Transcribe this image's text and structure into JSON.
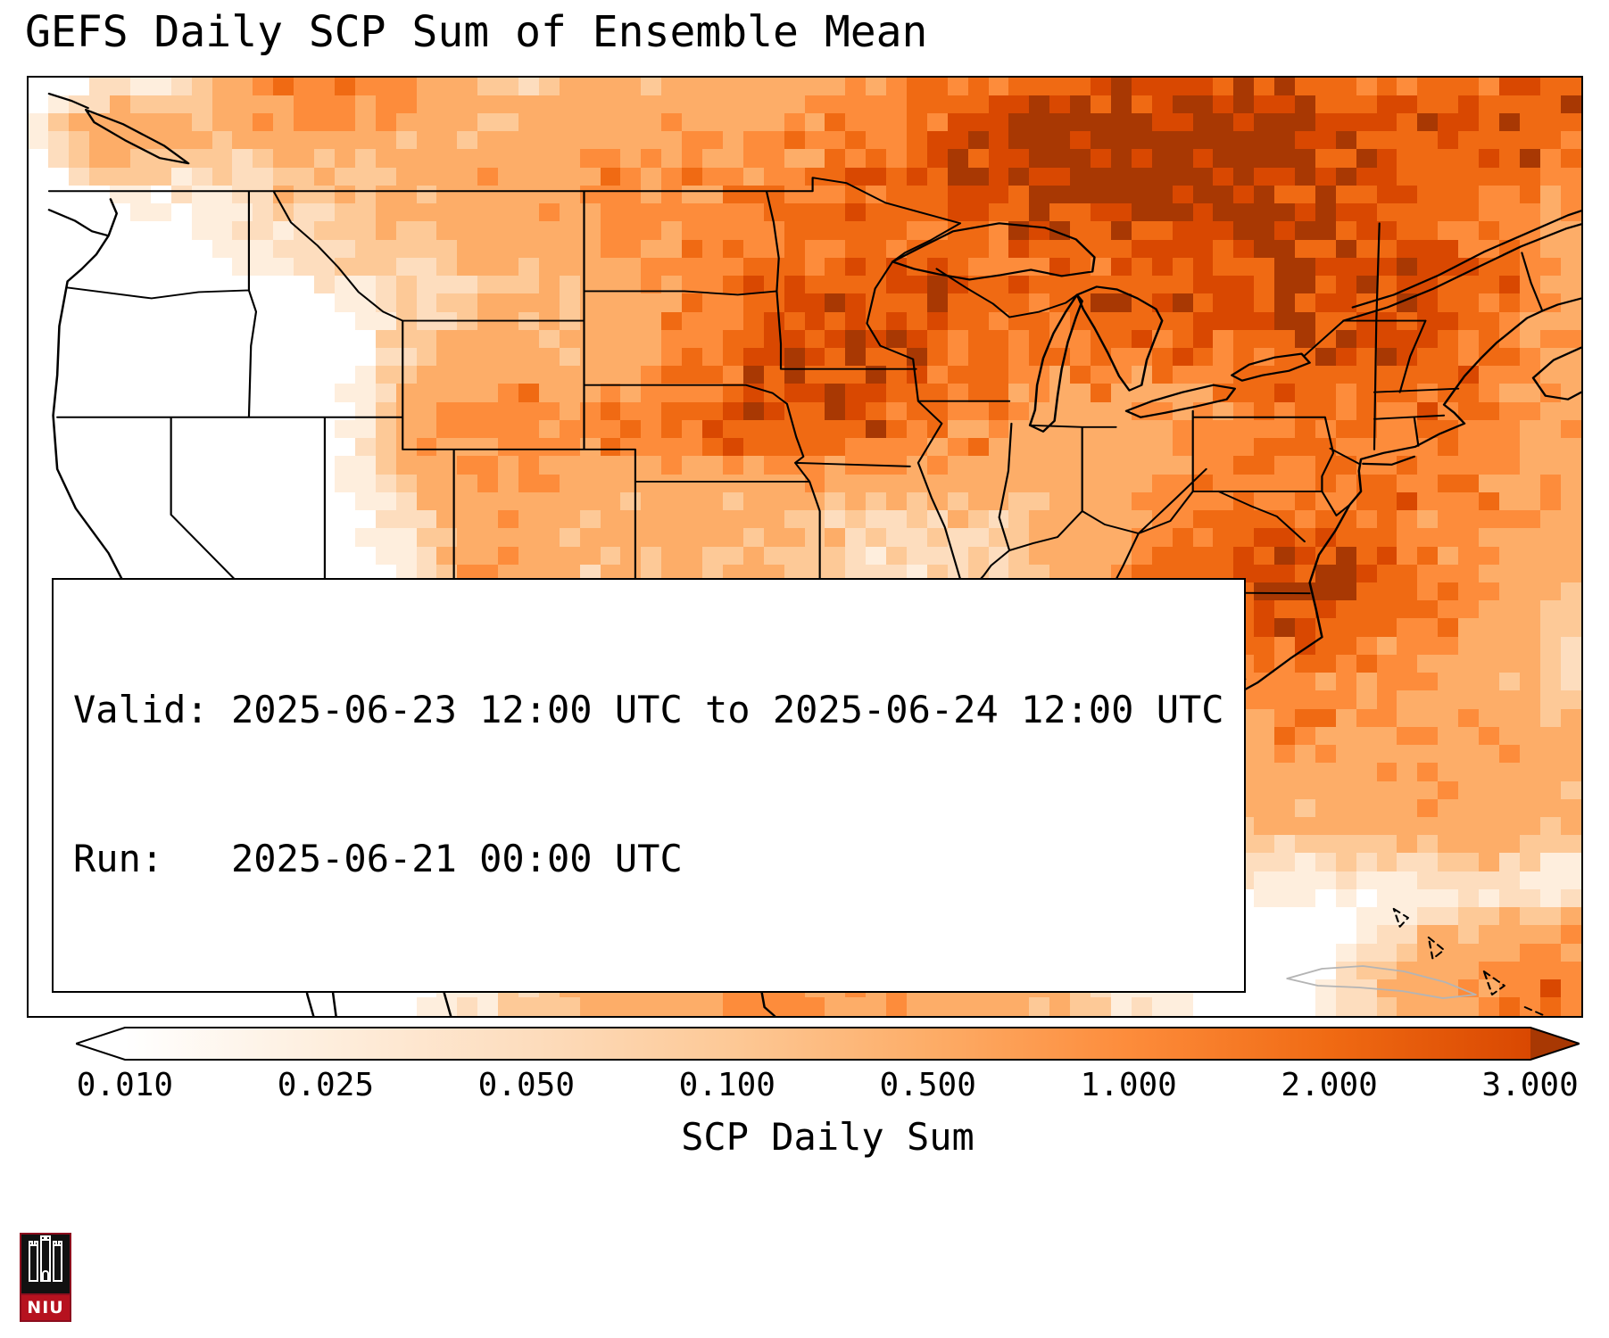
{
  "title": "GEFS Daily SCP Sum of Ensemble Mean",
  "info_box": {
    "valid_line": "Valid: 2025-06-23 12:00 UTC to 2025-06-24 12:00 UTC",
    "run_line": "Run:   2025-06-21 00:00 UTC"
  },
  "logo": {
    "text": "NIU"
  },
  "chart_data": {
    "type": "heatmap",
    "title": "GEFS Daily SCP Sum of Ensemble Mean",
    "valid_period": "2025-06-23 12:00 UTC to 2025-06-24 12:00 UTC",
    "run_time": "2025-06-21 00:00 UTC",
    "colorbar": {
      "label": "SCP Daily Sum",
      "ticks": [
        "0.010",
        "0.025",
        "0.050",
        "0.100",
        "0.500",
        "1.000",
        "2.000",
        "3.000"
      ],
      "tick_values": [
        0.01,
        0.025,
        0.05,
        0.1,
        0.5,
        1.0,
        2.0,
        3.0
      ],
      "extend": "both",
      "colormap": "Oranges",
      "under_color": "#ffffff",
      "over_color": "#a83803",
      "segment_colors": [
        "#ffffff",
        "#feeedd",
        "#fdddbe",
        "#fdc997",
        "#fdad68",
        "#fd8c3b",
        "#f06a13",
        "#d94801",
        "#a83803"
      ],
      "gradient_stops": [
        [
          0.0,
          "#ffffff"
        ],
        [
          0.143,
          "#feeedd"
        ],
        [
          0.286,
          "#fdddbe"
        ],
        [
          0.429,
          "#fdc997"
        ],
        [
          0.571,
          "#fdad68"
        ],
        [
          0.714,
          "#fd8c3b"
        ],
        [
          0.857,
          "#f06a13"
        ],
        [
          1.0,
          "#d94801"
        ]
      ]
    },
    "grid": {
      "cols": 76,
      "rows": 52
    },
    "hotspots": [
      {
        "region": "lake-superior-ontario",
        "x": 0.672,
        "y": 0.086,
        "sx": 0.075,
        "sy": 0.06,
        "peak": 2.9
      },
      {
        "region": "northern-ontario",
        "x": 0.77,
        "y": 0.055,
        "sx": 0.07,
        "sy": 0.05,
        "peak": 2.2
      },
      {
        "region": "wisconsin-minnesota",
        "x": 0.537,
        "y": 0.25,
        "sx": 0.065,
        "sy": 0.06,
        "peak": 1.8
      },
      {
        "region": "iowa-southern-minnesota",
        "x": 0.5,
        "y": 0.333,
        "sx": 0.055,
        "sy": 0.04,
        "peak": 1.5
      },
      {
        "region": "nebraska-band",
        "x": 0.437,
        "y": 0.375,
        "sx": 0.075,
        "sy": 0.028,
        "peak": 0.8
      },
      {
        "region": "quebec-northeast",
        "x": 0.816,
        "y": 0.157,
        "sx": 0.09,
        "sy": 0.08,
        "peak": 1.5
      },
      {
        "region": "gulf-of-st-lawrence",
        "x": 0.96,
        "y": 0.033,
        "sx": 0.06,
        "sy": 0.05,
        "peak": 1.7
      },
      {
        "region": "new-england",
        "x": 0.88,
        "y": 0.24,
        "sx": 0.05,
        "sy": 0.06,
        "peak": 1.0
      },
      {
        "region": "atlantic-offshore-carolinas",
        "x": 0.81,
        "y": 0.542,
        "sx": 0.06,
        "sy": 0.05,
        "peak": 2.2
      },
      {
        "region": "atlantic-offshore-northeast",
        "x": 0.856,
        "y": 0.36,
        "sx": 0.09,
        "sy": 0.11,
        "peak": 1.0
      },
      {
        "region": "colorado-rockies",
        "x": 0.296,
        "y": 0.366,
        "sx": 0.03,
        "sy": 0.055,
        "peak": 0.5
      },
      {
        "region": "new-mexico",
        "x": 0.305,
        "y": 0.537,
        "sx": 0.022,
        "sy": 0.095,
        "peak": 0.35
      },
      {
        "region": "gulf-coast-alabama-florida",
        "x": 0.595,
        "y": 0.68,
        "sx": 0.045,
        "sy": 0.03,
        "peak": 0.55
      },
      {
        "region": "washington-cascades",
        "x": 0.172,
        "y": 0.029,
        "sx": 0.028,
        "sy": 0.03,
        "peak": 0.5
      },
      {
        "region": "british-columbia-border",
        "x": 0.213,
        "y": 0.014,
        "sx": 0.035,
        "sy": 0.025,
        "peak": 0.8
      },
      {
        "region": "washington-coast",
        "x": 0.063,
        "y": 0.062,
        "sx": 0.022,
        "sy": 0.025,
        "peak": 0.25
      },
      {
        "region": "montana",
        "x": 0.287,
        "y": 0.119,
        "sx": 0.08,
        "sy": 0.055,
        "peak": 0.12
      },
      {
        "region": "north-dakota-manitoba",
        "x": 0.437,
        "y": 0.138,
        "sx": 0.07,
        "sy": 0.06,
        "peak": 0.35
      },
      {
        "region": "northern-plains-wash",
        "x": 0.529,
        "y": 0.109,
        "sx": 0.13,
        "sy": 0.09,
        "peak": 0.3
      },
      {
        "region": "michigan-lake-huron",
        "x": 0.69,
        "y": 0.252,
        "sx": 0.055,
        "sy": 0.05,
        "peak": 0.7
      },
      {
        "region": "new-york-pennsylvania",
        "x": 0.81,
        "y": 0.233,
        "sx": 0.05,
        "sy": 0.05,
        "peak": 0.7
      },
      {
        "region": "illinois-indiana",
        "x": 0.586,
        "y": 0.375,
        "sx": 0.06,
        "sy": 0.045,
        "peak": 0.25
      },
      {
        "region": "kansas-oklahoma",
        "x": 0.42,
        "y": 0.49,
        "sx": 0.055,
        "sy": 0.055,
        "peak": 0.1
      },
      {
        "region": "louisiana-mississippi",
        "x": 0.557,
        "y": 0.722,
        "sx": 0.035,
        "sy": 0.028,
        "peak": 0.2
      },
      {
        "region": "southeast-offshore",
        "x": 0.805,
        "y": 0.67,
        "sx": 0.075,
        "sy": 0.075,
        "peak": 0.45
      },
      {
        "region": "florida-atlantic",
        "x": 0.937,
        "y": 0.737,
        "sx": 0.045,
        "sy": 0.05,
        "peak": 0.35
      },
      {
        "region": "central-plains-background",
        "x": 0.45,
        "y": 0.45,
        "sx": 0.12,
        "sy": 0.1,
        "peak": 0.05
      },
      {
        "region": "southern-mexico-edge",
        "x": 0.5,
        "y": 0.984,
        "sx": 0.09,
        "sy": 0.04,
        "peak": 0.5
      },
      {
        "region": "caribbean-corner",
        "x": 0.983,
        "y": 0.984,
        "sx": 0.05,
        "sy": 0.04,
        "peak": 1.0
      }
    ]
  }
}
